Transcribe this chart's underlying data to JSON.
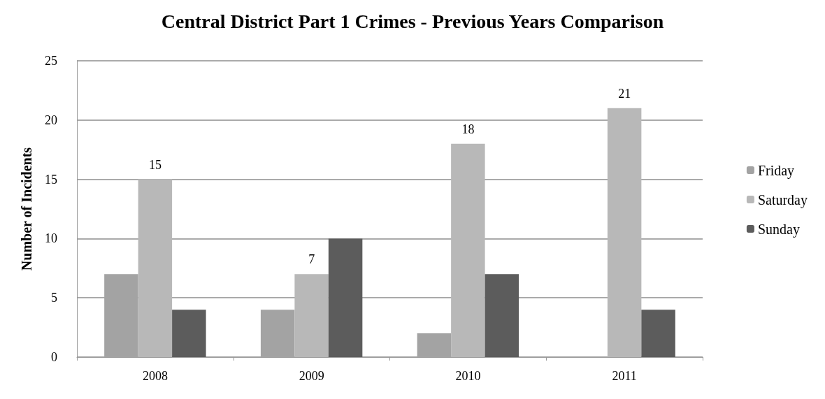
{
  "chart_data": {
    "type": "bar",
    "title": "Central District Part 1 Crimes - Previous Years Comparison",
    "ylabel": "Number of Incidents",
    "categories": [
      "2008",
      "2009",
      "2010",
      "2011"
    ],
    "series": [
      {
        "name": "Friday",
        "color": "#a3a3a3",
        "values": [
          7,
          4,
          2,
          0
        ]
      },
      {
        "name": "Saturday",
        "color": "#b8b8b8",
        "values": [
          15,
          7,
          18,
          21
        ],
        "value_labels": [
          "15",
          "7",
          "18",
          "21"
        ]
      },
      {
        "name": "Sunday",
        "color": "#5c5c5c",
        "values": [
          4,
          10,
          7,
          4
        ]
      }
    ],
    "ylim": [
      0,
      25
    ],
    "yticks": [
      0,
      5,
      10,
      15,
      20,
      25
    ],
    "grid": "y",
    "legend": "right"
  }
}
